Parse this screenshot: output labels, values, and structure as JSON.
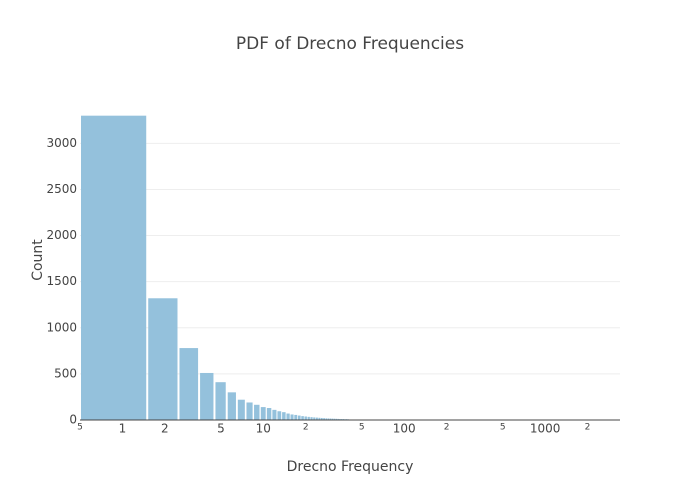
{
  "chart_data": {
    "type": "histogram",
    "title": "PDF of Drecno Frequencies",
    "x_label": "Drecno Frequency",
    "y_label": "Count",
    "x_log": true,
    "grid": true,
    "color": "#94c1dc",
    "bins": [
      0.5,
      1.5,
      2.5,
      3.5,
      4.5,
      5.5,
      6.5,
      7.5,
      8.5,
      9.5,
      10.5,
      11.5,
      12.5,
      13.5,
      14.5,
      15.5,
      16.5,
      17.5,
      18.5,
      19.5,
      20.5,
      21.5,
      22.5,
      23.5,
      24.5,
      25.5,
      26.5,
      27.5,
      28.5,
      29.5,
      30.5,
      31.5,
      32.5,
      33.5,
      34.5,
      35.5,
      36.5,
      37.5,
      38.5,
      39.5,
      40.5
    ],
    "values": [
      3300,
      1320,
      780,
      510,
      410,
      300,
      220,
      190,
      165,
      140,
      130,
      110,
      95,
      85,
      70,
      60,
      55,
      48,
      42,
      38,
      34,
      31,
      28,
      26,
      24,
      22,
      20,
      18,
      17,
      16,
      15,
      14,
      13,
      12,
      11,
      10,
      10,
      9,
      9,
      8
    ],
    "xlim": [
      0.5,
      3400
    ],
    "ylim": [
      0,
      3470
    ],
    "xticks": [
      {
        "value": 0.5,
        "label": "5"
      },
      1,
      2,
      5,
      10,
      {
        "value": 20,
        "label": "2"
      },
      {
        "value": 50,
        "label": "5"
      },
      100,
      {
        "value": 200,
        "label": "2"
      },
      {
        "value": 500,
        "label": "5"
      },
      1000,
      {
        "value": 2000,
        "label": "2"
      }
    ],
    "yticks": [
      0,
      500,
      1000,
      1500,
      2000,
      2500,
      3000
    ]
  }
}
